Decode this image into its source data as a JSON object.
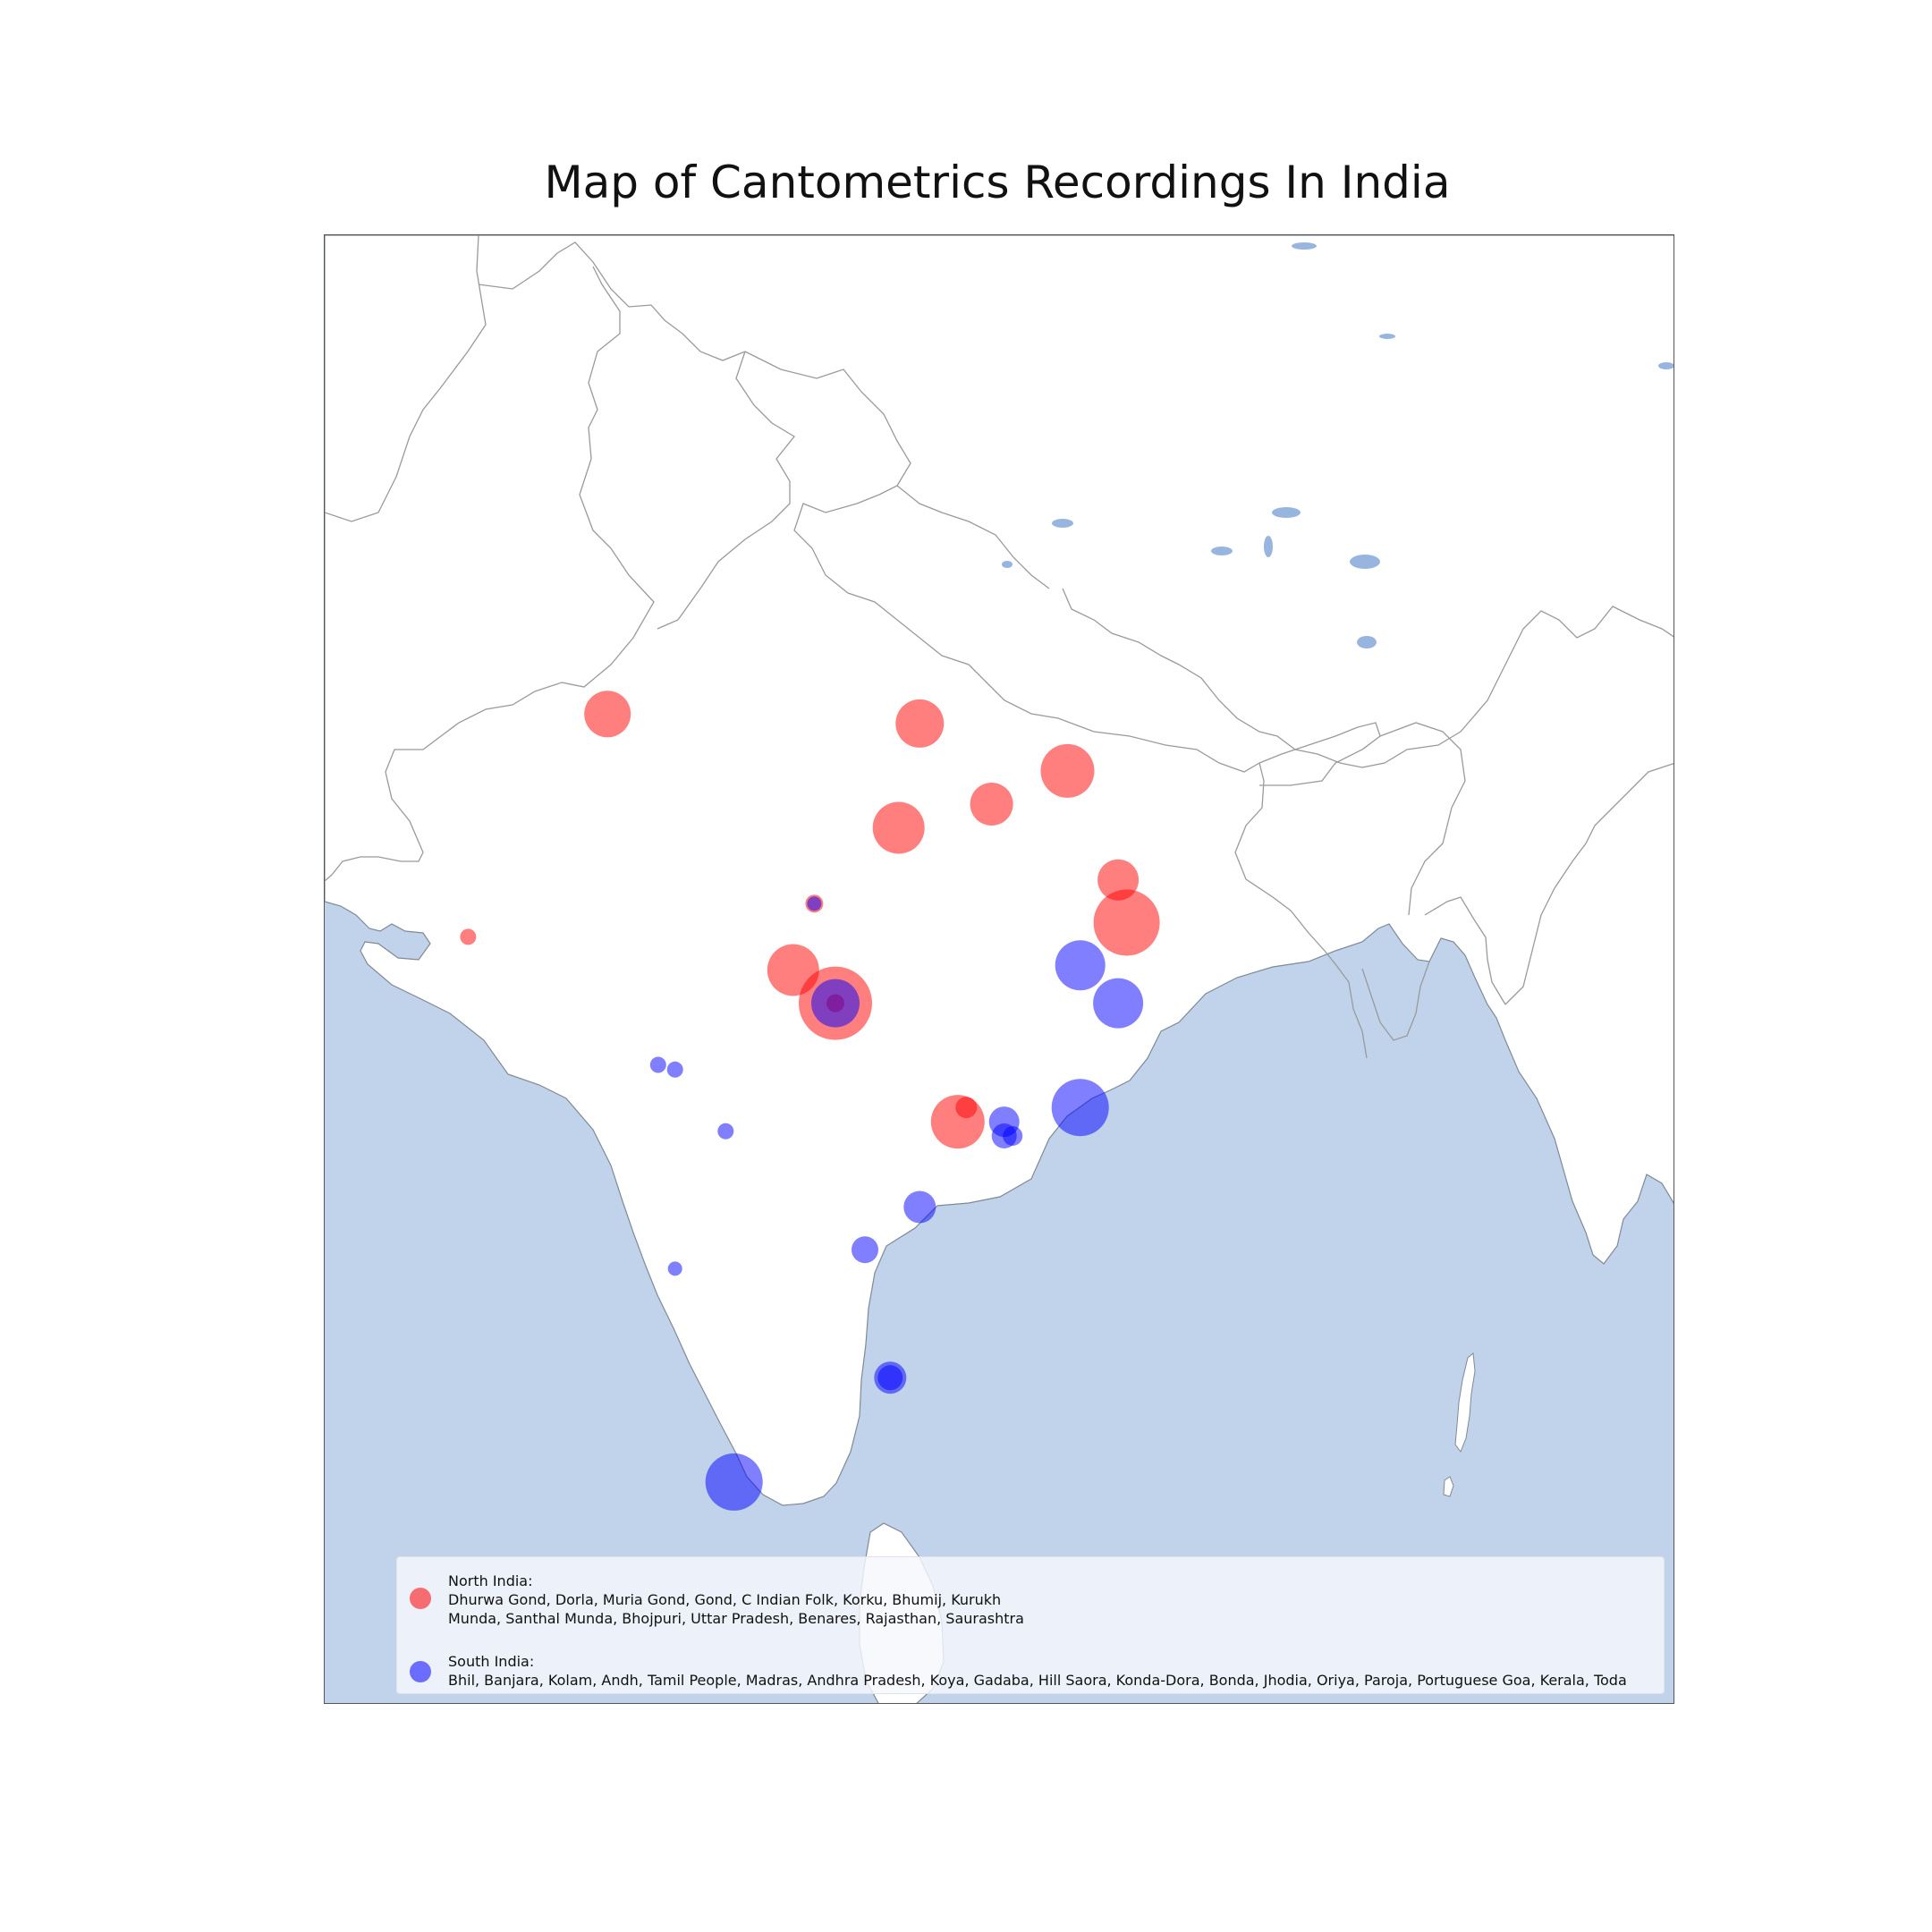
{
  "title": "Map of Cantometrics Recordings In India",
  "colors": {
    "ocean": "#c0d3eb",
    "land": "#ffffff",
    "border": "#999999",
    "lake": "#98b5e0",
    "north": "#ff0000",
    "south": "#0000ff"
  },
  "legend": {
    "north": {
      "heading": "North India:",
      "line1": "Dhurwa Gond, Dorla, Muria Gond, Gond, C Indian Folk, Korku, Bhumij, Kurukh",
      "line2": "Munda, Santhal Munda, Bhojpuri, Uttar Pradesh, Benares, Rajasthan, Saurashtra"
    },
    "south": {
      "heading": "South India:",
      "line1": "Bhil, Banjara, Kolam, Andh, Tamil People, Madras, Andhra Pradesh, Koya, Gadaba, Hill Saora, Konda-Dora, Bonda, Jhodia, Oriya, Paroja, Portuguese Goa, Kerala, Toda"
    }
  },
  "map_data": {
    "extent": {
      "lon": [
        66,
        98
      ],
      "lat": [
        6,
        37
      ]
    },
    "points": [
      {
        "region": "north",
        "lon": 72.7,
        "lat": 26.9,
        "size": 26
      },
      {
        "region": "north",
        "lon": 80.1,
        "lat": 26.7,
        "size": 27
      },
      {
        "region": "north",
        "lon": 83.6,
        "lat": 25.7,
        "size": 30
      },
      {
        "region": "north",
        "lon": 81.8,
        "lat": 25.0,
        "size": 24
      },
      {
        "region": "north",
        "lon": 79.6,
        "lat": 24.5,
        "size": 29
      },
      {
        "region": "north",
        "lon": 84.8,
        "lat": 23.4,
        "size": 23
      },
      {
        "region": "north",
        "lon": 85.0,
        "lat": 22.5,
        "size": 37
      },
      {
        "region": "north",
        "lon": 77.6,
        "lat": 22.9,
        "size": 10
      },
      {
        "region": "north",
        "lon": 69.4,
        "lat": 22.2,
        "size": 9
      },
      {
        "region": "north",
        "lon": 77.1,
        "lat": 21.5,
        "size": 29
      },
      {
        "region": "north",
        "lon": 78.1,
        "lat": 20.8,
        "size": 41
      },
      {
        "region": "north",
        "lon": 78.1,
        "lat": 20.8,
        "size": 10
      },
      {
        "region": "north",
        "lon": 81.2,
        "lat": 18.6,
        "size": 12
      },
      {
        "region": "north",
        "lon": 81.0,
        "lat": 18.3,
        "size": 30
      },
      {
        "region": "south",
        "lon": 78.1,
        "lat": 20.8,
        "size": 27
      },
      {
        "region": "south",
        "lon": 77.6,
        "lat": 22.9,
        "size": 8
      },
      {
        "region": "south",
        "lon": 83.9,
        "lat": 21.6,
        "size": 28
      },
      {
        "region": "south",
        "lon": 84.8,
        "lat": 20.8,
        "size": 28
      },
      {
        "region": "south",
        "lon": 73.9,
        "lat": 19.5,
        "size": 9
      },
      {
        "region": "south",
        "lon": 74.3,
        "lat": 19.4,
        "size": 9
      },
      {
        "region": "south",
        "lon": 75.5,
        "lat": 18.1,
        "size": 9
      },
      {
        "region": "south",
        "lon": 83.9,
        "lat": 18.6,
        "size": 32
      },
      {
        "region": "south",
        "lon": 82.1,
        "lat": 18.3,
        "size": 17
      },
      {
        "region": "south",
        "lon": 82.1,
        "lat": 18.0,
        "size": 14
      },
      {
        "region": "south",
        "lon": 82.3,
        "lat": 18.0,
        "size": 11
      },
      {
        "region": "south",
        "lon": 80.1,
        "lat": 16.5,
        "size": 18
      },
      {
        "region": "south",
        "lon": 78.8,
        "lat": 15.6,
        "size": 15
      },
      {
        "region": "south",
        "lon": 74.3,
        "lat": 15.2,
        "size": 8
      },
      {
        "region": "south",
        "lon": 79.4,
        "lat": 12.9,
        "size": 18
      },
      {
        "region": "south",
        "lon": 79.4,
        "lat": 12.9,
        "size": 14
      },
      {
        "region": "south",
        "lon": 75.7,
        "lat": 10.7,
        "size": 32
      }
    ]
  }
}
